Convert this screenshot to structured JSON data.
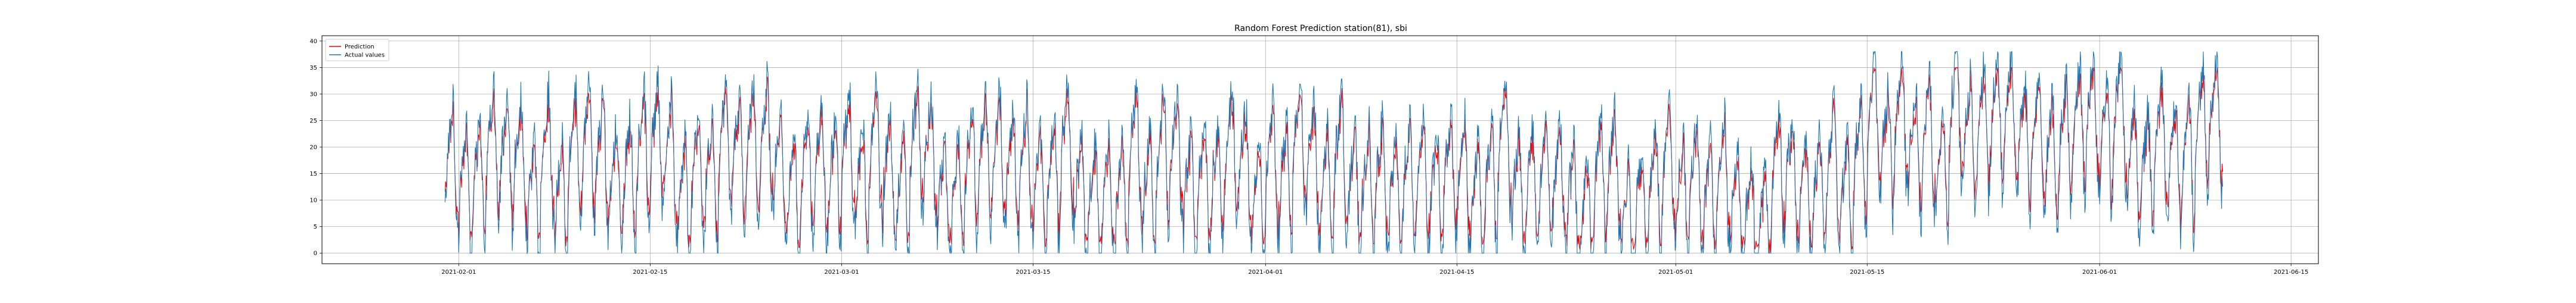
{
  "chart_data": {
    "type": "line",
    "title": "Random Forest Prediction  station(81), sbi",
    "xlabel": "",
    "ylabel": "",
    "xlim": [
      "2021-01-22",
      "2021-06-17"
    ],
    "ylim": [
      -2,
      41
    ],
    "grid": true,
    "legend_position": "top-left",
    "x_ticks": [
      "2021-02-01",
      "2021-02-15",
      "2021-03-01",
      "2021-03-15",
      "2021-04-01",
      "2021-04-15",
      "2021-05-01",
      "2021-05-15",
      "2021-06-01",
      "2021-06-15"
    ],
    "y_ticks": [
      0,
      5,
      10,
      15,
      20,
      25,
      30,
      35,
      40
    ],
    "x_start": "2021-01-31",
    "x_end": "2021-06-10",
    "series": [
      {
        "name": "Prediction",
        "color": "#ff0000"
      },
      {
        "name": "Actual values",
        "color": "#1f77b4"
      }
    ],
    "description": "Hourly bike availability (sbi) Feb–mid June 2021: frequent daily swings between ~0 and ~30-37; prediction tracks actual values closely."
  }
}
